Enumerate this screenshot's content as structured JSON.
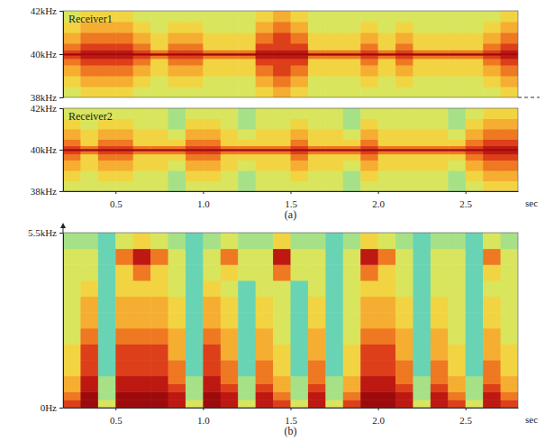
{
  "chart_data": [
    {
      "type": "heatmap",
      "title": "Receiver1",
      "x_bins": [
        0.2,
        0.3,
        0.4,
        0.5,
        0.6,
        0.7,
        0.8,
        0.9,
        1.0,
        1.1,
        1.2,
        1.3,
        1.4,
        1.5,
        1.6,
        1.7,
        1.8,
        1.9,
        2.0,
        2.1,
        2.2,
        2.3,
        2.4,
        2.5,
        2.6,
        2.7,
        2.8
      ],
      "y_bins": [
        38,
        38.5,
        39,
        39.5,
        39.8,
        39.95,
        40.05,
        40.2,
        40.5,
        41,
        41.5,
        42
      ],
      "cells": [
        [
          3,
          4,
          4,
          4,
          3,
          3,
          3,
          3,
          3,
          3,
          3,
          4,
          5,
          4,
          3,
          3,
          3,
          3,
          3,
          3,
          3,
          3,
          3,
          3,
          3,
          4
        ],
        [
          4,
          5,
          5,
          5,
          4,
          3,
          4,
          4,
          3,
          3,
          3,
          5,
          6,
          5,
          3,
          3,
          3,
          4,
          3,
          4,
          3,
          3,
          3,
          3,
          4,
          5
        ],
        [
          5,
          6,
          6,
          6,
          5,
          4,
          5,
          5,
          4,
          4,
          4,
          6,
          7,
          6,
          4,
          4,
          4,
          5,
          4,
          5,
          4,
          4,
          4,
          4,
          5,
          6
        ],
        [
          6,
          7,
          7,
          7,
          6,
          4,
          6,
          6,
          4,
          4,
          4,
          7,
          7,
          7,
          4,
          4,
          4,
          6,
          4,
          6,
          4,
          4,
          4,
          4,
          6,
          7
        ],
        [
          7,
          8,
          8,
          8,
          7,
          6,
          7,
          7,
          6,
          6,
          6,
          8,
          8,
          8,
          6,
          6,
          6,
          7,
          6,
          7,
          6,
          6,
          6,
          6,
          7,
          8
        ],
        [
          9,
          9,
          9,
          9,
          9,
          9,
          9,
          9,
          9,
          9,
          9,
          9,
          9,
          9,
          9,
          9,
          9,
          9,
          9,
          9,
          9,
          9,
          9,
          9,
          9,
          9
        ],
        [
          7,
          8,
          8,
          8,
          7,
          6,
          7,
          7,
          6,
          6,
          6,
          8,
          8,
          8,
          6,
          6,
          6,
          7,
          6,
          7,
          6,
          6,
          6,
          6,
          7,
          8
        ],
        [
          6,
          7,
          7,
          7,
          6,
          4,
          6,
          6,
          4,
          4,
          4,
          7,
          7,
          7,
          4,
          4,
          4,
          6,
          4,
          6,
          4,
          4,
          4,
          4,
          6,
          7
        ],
        [
          5,
          6,
          6,
          6,
          5,
          4,
          5,
          5,
          4,
          4,
          4,
          6,
          7,
          6,
          4,
          4,
          4,
          5,
          4,
          5,
          4,
          4,
          4,
          4,
          5,
          6
        ],
        [
          4,
          5,
          5,
          5,
          4,
          3,
          4,
          4,
          3,
          3,
          3,
          5,
          6,
          5,
          3,
          3,
          3,
          4,
          3,
          4,
          3,
          3,
          3,
          3,
          4,
          5
        ],
        [
          3,
          4,
          4,
          4,
          3,
          3,
          3,
          3,
          3,
          3,
          3,
          4,
          5,
          4,
          3,
          3,
          3,
          3,
          3,
          3,
          3,
          3,
          3,
          3,
          3,
          4
        ]
      ],
      "zlim": [
        0,
        9
      ],
      "xlim": [
        0.2,
        2.8
      ],
      "ylim": [
        38,
        42
      ],
      "yticks": [
        {
          "value": 38,
          "label": "38kHz"
        },
        {
          "value": 40,
          "label": "40kHz"
        },
        {
          "value": 42,
          "label": "42kHz"
        }
      ],
      "tick_labels": "y"
    },
    {
      "type": "heatmap",
      "title": "Receiver2",
      "xlabel": "sec",
      "annotations": [
        "(a)"
      ],
      "x_bins": [
        0.2,
        0.3,
        0.4,
        0.5,
        0.6,
        0.7,
        0.8,
        0.9,
        1.0,
        1.1,
        1.2,
        1.3,
        1.4,
        1.5,
        1.6,
        1.7,
        1.8,
        1.9,
        2.0,
        2.1,
        2.2,
        2.3,
        2.4,
        2.5,
        2.6,
        2.7,
        2.8
      ],
      "y_bins": [
        38,
        38.5,
        39,
        39.5,
        39.8,
        39.95,
        40.05,
        40.2,
        40.5,
        41,
        41.5,
        42
      ],
      "cells": [
        [
          3,
          3,
          3,
          3,
          3,
          3,
          2,
          3,
          3,
          3,
          2,
          3,
          3,
          3,
          3,
          3,
          2,
          3,
          3,
          3,
          3,
          3,
          2,
          3,
          4,
          4
        ],
        [
          4,
          3,
          4,
          4,
          3,
          3,
          2,
          4,
          4,
          3,
          2,
          3,
          3,
          4,
          3,
          3,
          2,
          4,
          3,
          3,
          3,
          3,
          2,
          4,
          5,
          5
        ],
        [
          5,
          4,
          5,
          5,
          4,
          4,
          3,
          5,
          5,
          4,
          3,
          4,
          4,
          5,
          4,
          4,
          3,
          5,
          4,
          4,
          4,
          4,
          3,
          5,
          6,
          6
        ],
        [
          6,
          4,
          6,
          6,
          4,
          4,
          4,
          6,
          6,
          4,
          4,
          4,
          4,
          6,
          4,
          4,
          4,
          6,
          4,
          4,
          4,
          4,
          4,
          6,
          7,
          7
        ],
        [
          7,
          6,
          7,
          7,
          6,
          6,
          6,
          7,
          7,
          6,
          6,
          6,
          6,
          7,
          6,
          6,
          6,
          7,
          6,
          6,
          6,
          6,
          6,
          7,
          8,
          8
        ],
        [
          9,
          9,
          9,
          9,
          9,
          9,
          9,
          9,
          9,
          9,
          9,
          9,
          9,
          9,
          9,
          9,
          9,
          9,
          9,
          9,
          9,
          9,
          9,
          9,
          9,
          9
        ],
        [
          7,
          6,
          7,
          7,
          6,
          6,
          6,
          7,
          7,
          6,
          6,
          6,
          6,
          7,
          6,
          6,
          6,
          7,
          6,
          6,
          6,
          6,
          6,
          7,
          8,
          8
        ],
        [
          6,
          4,
          6,
          6,
          4,
          4,
          4,
          6,
          6,
          4,
          4,
          4,
          4,
          6,
          4,
          4,
          4,
          6,
          4,
          4,
          4,
          4,
          4,
          6,
          7,
          7
        ],
        [
          5,
          4,
          5,
          5,
          4,
          4,
          3,
          5,
          5,
          4,
          3,
          4,
          4,
          5,
          4,
          4,
          3,
          5,
          4,
          4,
          4,
          4,
          3,
          5,
          6,
          6
        ],
        [
          4,
          3,
          4,
          4,
          3,
          3,
          2,
          4,
          4,
          3,
          2,
          3,
          3,
          4,
          3,
          3,
          2,
          4,
          3,
          3,
          3,
          3,
          2,
          4,
          5,
          5
        ],
        [
          3,
          3,
          3,
          3,
          3,
          3,
          2,
          3,
          3,
          3,
          2,
          3,
          3,
          3,
          3,
          3,
          2,
          3,
          3,
          3,
          3,
          3,
          2,
          3,
          4,
          4
        ]
      ],
      "zlim": [
        0,
        9
      ],
      "xlim": [
        0.2,
        2.8
      ],
      "ylim": [
        38,
        42
      ],
      "xticks": [
        0.5,
        {
          "value": 1,
          "label": "1.0"
        },
        1.5,
        {
          "value": 2,
          "label": "2.0"
        },
        2.5
      ],
      "yticks": [
        {
          "value": 38,
          "label": "38kHz"
        },
        {
          "value": 40,
          "label": "40kHz"
        },
        {
          "value": 42,
          "label": "42kHz"
        }
      ]
    },
    {
      "type": "heatmap",
      "xlabel": "sec",
      "annotations": [
        "(b)"
      ],
      "x_bins": [
        0.2,
        0.3,
        0.4,
        0.5,
        0.6,
        0.7,
        0.8,
        0.9,
        1.0,
        1.1,
        1.2,
        1.3,
        1.4,
        1.5,
        1.6,
        1.7,
        1.8,
        1.9,
        2.0,
        2.1,
        2.2,
        2.3,
        2.4,
        2.5,
        2.6,
        2.7,
        2.8
      ],
      "y_bins": [
        0,
        0.25,
        0.5,
        0.75,
        1,
        1.5,
        2,
        2.5,
        3,
        3.5,
        4,
        4.5,
        5,
        5.5
      ],
      "cells": [
        [
          7,
          9,
          3,
          9,
          9,
          9,
          8,
          3,
          9,
          8,
          3,
          8,
          7,
          3,
          8,
          3,
          7,
          9,
          9,
          8,
          3,
          8,
          7,
          3,
          8,
          7
        ],
        [
          6,
          9,
          2,
          9,
          9,
          9,
          8,
          2,
          9,
          8,
          2,
          8,
          6,
          2,
          8,
          2,
          6,
          9,
          9,
          8,
          2,
          8,
          6,
          2,
          8,
          6
        ],
        [
          5,
          8,
          2,
          8,
          8,
          8,
          7,
          2,
          8,
          7,
          2,
          7,
          5,
          2,
          7,
          2,
          5,
          8,
          8,
          7,
          2,
          7,
          5,
          2,
          7,
          5
        ],
        [
          5,
          8,
          2,
          8,
          8,
          8,
          6,
          2,
          8,
          6,
          2,
          6,
          5,
          2,
          6,
          2,
          5,
          8,
          8,
          6,
          2,
          6,
          5,
          2,
          6,
          5
        ],
        [
          4,
          7,
          1,
          7,
          7,
          7,
          6,
          1,
          7,
          6,
          1,
          6,
          4,
          1,
          6,
          1,
          4,
          7,
          7,
          6,
          1,
          6,
          4,
          1,
          6,
          4
        ],
        [
          4,
          7,
          1,
          7,
          7,
          7,
          5,
          1,
          7,
          5,
          1,
          5,
          4,
          1,
          5,
          1,
          4,
          7,
          7,
          5,
          1,
          5,
          4,
          1,
          5,
          4
        ],
        [
          3,
          6,
          1,
          6,
          6,
          6,
          5,
          1,
          6,
          5,
          1,
          5,
          3,
          1,
          5,
          1,
          3,
          6,
          6,
          5,
          1,
          5,
          3,
          1,
          5,
          3
        ],
        [
          3,
          5,
          1,
          5,
          5,
          5,
          4,
          1,
          5,
          4,
          1,
          4,
          3,
          1,
          4,
          1,
          3,
          5,
          5,
          4,
          1,
          4,
          3,
          1,
          4,
          3
        ],
        [
          3,
          5,
          1,
          5,
          5,
          5,
          4,
          1,
          5,
          4,
          1,
          4,
          3,
          1,
          4,
          1,
          3,
          5,
          5,
          4,
          1,
          4,
          3,
          1,
          4,
          3
        ],
        [
          3,
          4,
          1,
          4,
          4,
          4,
          3,
          1,
          4,
          3,
          1,
          3,
          3,
          1,
          3,
          1,
          3,
          4,
          4,
          3,
          1,
          3,
          3,
          1,
          3,
          3
        ],
        [
          3,
          3,
          1,
          4,
          6,
          4,
          3,
          1,
          3,
          4,
          3,
          3,
          6,
          3,
          3,
          1,
          3,
          6,
          4,
          3,
          1,
          3,
          3,
          1,
          4,
          3
        ],
        [
          3,
          3,
          1,
          6,
          8,
          6,
          3,
          1,
          3,
          6,
          3,
          3,
          8,
          3,
          3,
          1,
          3,
          8,
          6,
          3,
          1,
          3,
          3,
          1,
          6,
          3
        ],
        [
          2,
          2,
          1,
          3,
          4,
          3,
          2,
          1,
          2,
          3,
          2,
          2,
          4,
          2,
          2,
          1,
          2,
          4,
          3,
          2,
          1,
          2,
          2,
          1,
          3,
          2
        ]
      ],
      "zlim": [
        0,
        9
      ],
      "xlim": [
        0.2,
        2.8
      ],
      "ylim": [
        0,
        5.5
      ],
      "xticks": [
        0.5,
        {
          "value": 1,
          "label": "1.0"
        },
        1.5,
        {
          "value": 2,
          "label": "2.0"
        },
        2.5
      ],
      "yticks": [
        {
          "value": 0,
          "label": "0Hz"
        },
        {
          "value": 5.5,
          "label": "5.5kHz"
        }
      ]
    }
  ]
}
